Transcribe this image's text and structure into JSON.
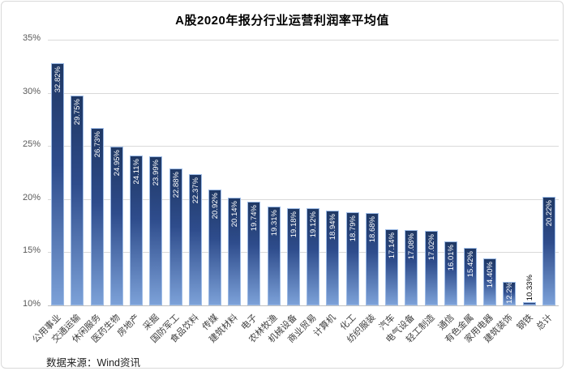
{
  "title": "A股2020年报分行业运营利润率平均值",
  "source_note": "数据来源：Wind资讯",
  "colors": {
    "bar_gradient_top": "#1f3864",
    "bar_gradient_mid": "#2e4c8c",
    "bar_gradient_bottom": "#7ca1d8",
    "bar_border": "#9dbbe6",
    "gridline": "#d9d9d9",
    "axis_line": "#bfbfbf",
    "axis_text": "#595959",
    "category_text": "#3f3f3f",
    "value_label_inside": "#ffffff",
    "value_label_outside": "#000000",
    "frame_border": "#d9d9d9",
    "title_color": "#000000"
  },
  "chart_data": {
    "type": "bar",
    "title": "A股2020年报分行业运营利润率平均值",
    "categories": [
      "公用事业",
      "交通运输",
      "休闲服务",
      "医药生物",
      "房地产",
      "采掘",
      "国防军工",
      "食品饮料",
      "传媒",
      "建筑材料",
      "电子",
      "农林牧渔",
      "机械设备",
      "商业贸易",
      "计算机",
      "化工",
      "纺织服装",
      "汽车",
      "电气设备",
      "轻工制造",
      "通信",
      "有色金属",
      "家用电器",
      "建筑装饰",
      "钢铁",
      "总计"
    ],
    "values": [
      32.82,
      29.75,
      26.73,
      24.95,
      24.11,
      23.99,
      22.88,
      22.37,
      20.92,
      20.14,
      19.74,
      19.31,
      19.18,
      19.12,
      18.94,
      18.79,
      18.68,
      17.14,
      17.08,
      17.02,
      16.01,
      15.42,
      14.4,
      12.2,
      10.33,
      20.22
    ],
    "value_labels": [
      "32.82%",
      "29.75%",
      "26.73%",
      "24.95%",
      "24.11%",
      "23.99%",
      "22.88%",
      "22.37%",
      "20.92%",
      "20.14%",
      "19.74%",
      "19.31%",
      "19.18%",
      "19.12%",
      "18.94%",
      "18.79%",
      "18.68%",
      "17.14%",
      "17.08%",
      "17.02%",
      "16.01%",
      "15.42%",
      "14.40%",
      "12.2%",
      "10.33%",
      "20.22%"
    ],
    "xlabel": "",
    "ylabel": "",
    "ylim": [
      10,
      35
    ],
    "ytick_step": 5,
    "yticks": [
      {
        "value": 35,
        "label": "35%"
      },
      {
        "value": 30,
        "label": "30%"
      },
      {
        "value": 25,
        "label": "25%"
      },
      {
        "value": 20,
        "label": "20%"
      },
      {
        "value": 15,
        "label": "15%"
      },
      {
        "value": 10,
        "label": "10%"
      }
    ],
    "grid": true,
    "legend": false,
    "source": "数据来源：Wind资讯"
  }
}
